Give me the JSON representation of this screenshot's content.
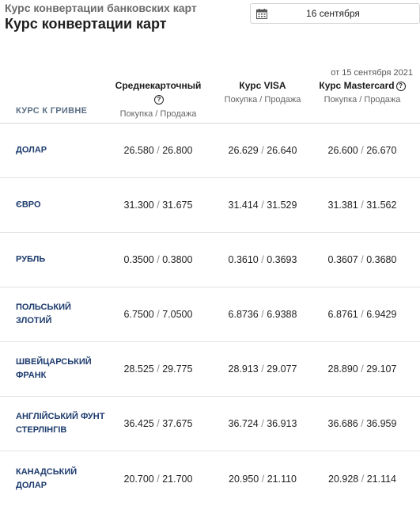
{
  "header": {
    "breadcrumb_title": "Курс конвертации банковских карт",
    "title": "Курс конвертации карт",
    "date_value": "16 сентября",
    "updated_note": "от 15 сентября 2021"
  },
  "table": {
    "label": "КУРС К ГРИВНЕ",
    "columns": [
      {
        "name": "Среднекарточный",
        "sub": "Покупка / Продажа",
        "help": "?"
      },
      {
        "name": "Курс VISA",
        "sub": "Покупка / Продажа",
        "help": ""
      },
      {
        "name": "Курс Mastercard",
        "sub": "Покупка / Продажа",
        "help": "?"
      }
    ],
    "separator": "/",
    "rows": [
      {
        "currency": "ДОЛАР",
        "avg": {
          "buy": "26.580",
          "sell": "26.800"
        },
        "visa": {
          "buy": "26.629",
          "sell": "26.640"
        },
        "mc": {
          "buy": "26.600",
          "sell": "26.670"
        }
      },
      {
        "currency": "ЄВРО",
        "avg": {
          "buy": "31.300",
          "sell": "31.675"
        },
        "visa": {
          "buy": "31.414",
          "sell": "31.529"
        },
        "mc": {
          "buy": "31.381",
          "sell": "31.562"
        }
      },
      {
        "currency": "РУБЛЬ",
        "avg": {
          "buy": "0.3500",
          "sell": "0.3800"
        },
        "visa": {
          "buy": "0.3610",
          "sell": "0.3693"
        },
        "mc": {
          "buy": "0.3607",
          "sell": "0.3680"
        }
      },
      {
        "currency": "ПОЛЬСЬКИЙ ЗЛОТИЙ",
        "avg": {
          "buy": "6.7500",
          "sell": "7.0500"
        },
        "visa": {
          "buy": "6.8736",
          "sell": "6.9388"
        },
        "mc": {
          "buy": "6.8761",
          "sell": "6.9429"
        }
      },
      {
        "currency": "ШВЕЙЦАРСЬКИЙ ФРАНК",
        "avg": {
          "buy": "28.525",
          "sell": "29.775"
        },
        "visa": {
          "buy": "28.913",
          "sell": "29.077"
        },
        "mc": {
          "buy": "28.890",
          "sell": "29.107"
        }
      },
      {
        "currency": "АНГЛІЙСЬКИЙ ФУНТ СТЕРЛІНГІВ",
        "avg": {
          "buy": "36.425",
          "sell": "37.675"
        },
        "visa": {
          "buy": "36.724",
          "sell": "36.913"
        },
        "mc": {
          "buy": "36.686",
          "sell": "36.959"
        }
      },
      {
        "currency": "КАНАДСЬКИЙ ДОЛАР",
        "avg": {
          "buy": "20.700",
          "sell": "21.700"
        },
        "visa": {
          "buy": "20.950",
          "sell": "21.110"
        },
        "mc": {
          "buy": "20.928",
          "sell": "21.114"
        }
      }
    ]
  }
}
